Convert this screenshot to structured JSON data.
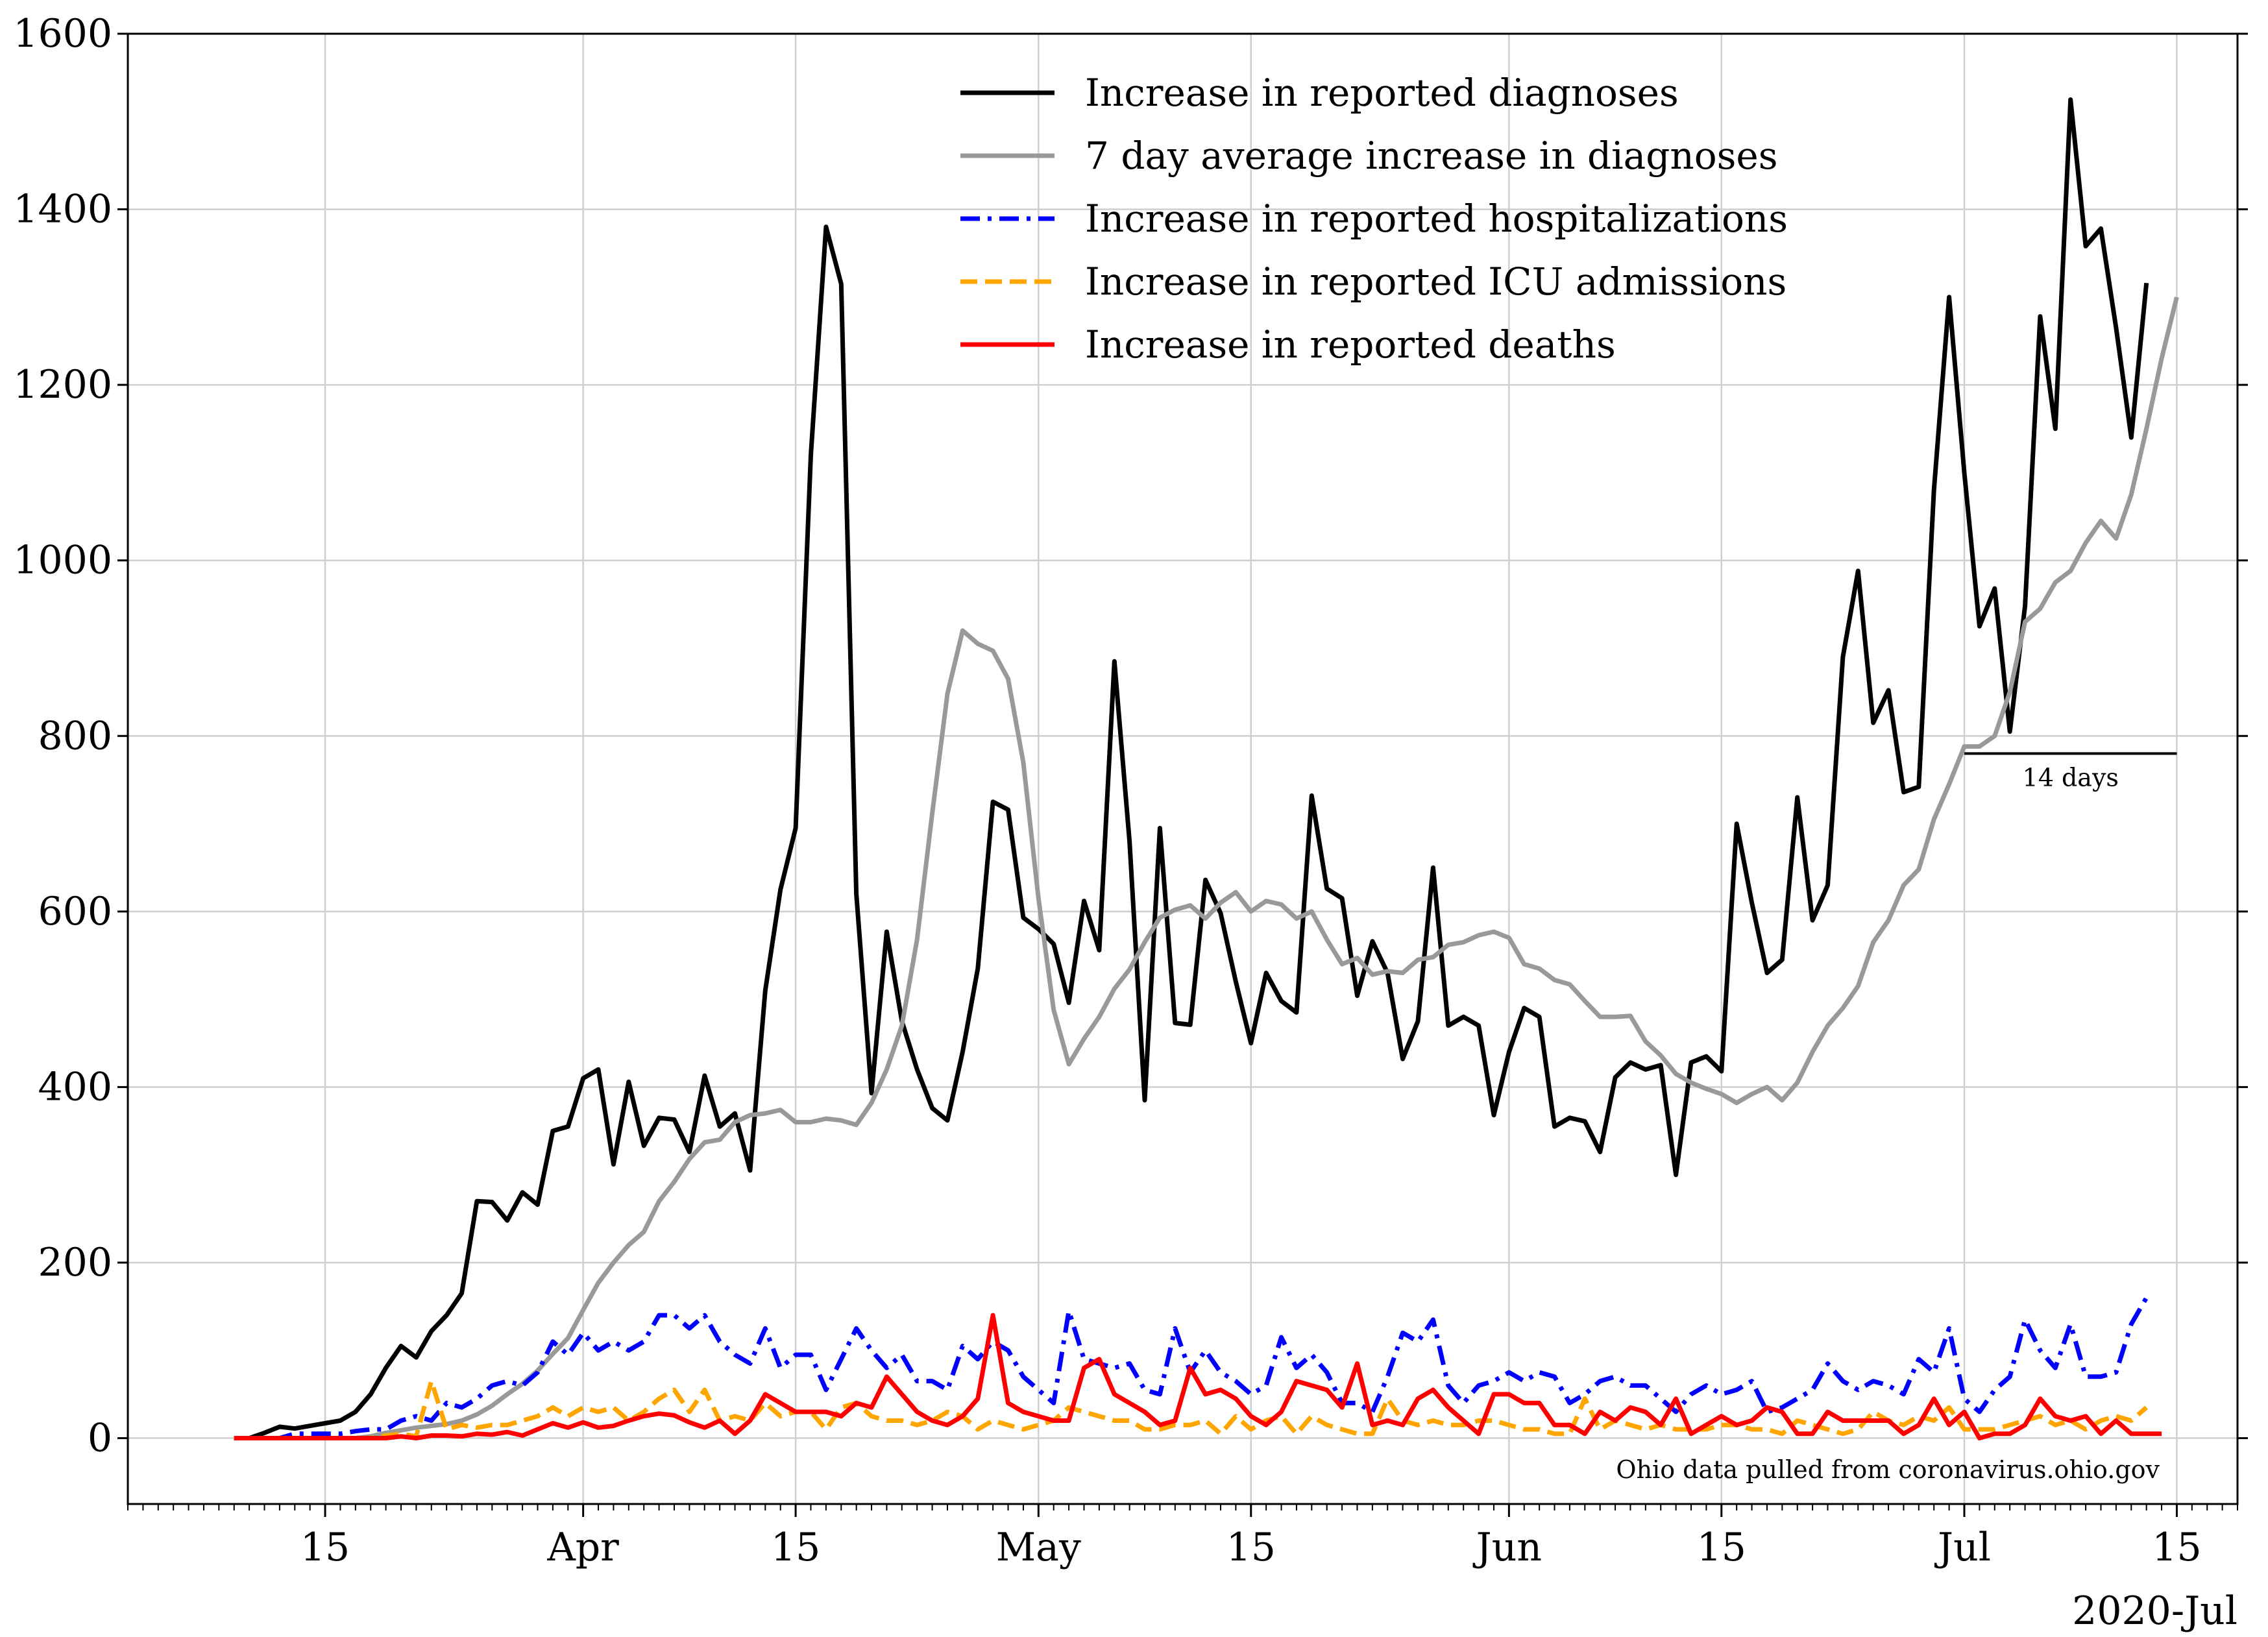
{
  "chart_data": {
    "type": "line",
    "x_axis": {
      "kind": "date",
      "range": [
        "2020-03-02",
        "2020-07-19"
      ],
      "major_ticks": [
        {
          "date": "2020-03-15",
          "label": "15"
        },
        {
          "date": "2020-04-01",
          "label": "Apr"
        },
        {
          "date": "2020-04-15",
          "label": "15"
        },
        {
          "date": "2020-05-01",
          "label": "May"
        },
        {
          "date": "2020-05-15",
          "label": "15"
        },
        {
          "date": "2020-06-01",
          "label": "Jun"
        },
        {
          "date": "2020-06-15",
          "label": "15"
        },
        {
          "date": "2020-07-01",
          "label": "Jul"
        },
        {
          "date": "2020-07-15",
          "label": "15"
        }
      ],
      "offset_label": "2020-Jul"
    },
    "y_axis": {
      "range": [
        -75,
        1600
      ],
      "ticks": [
        0,
        200,
        400,
        600,
        800,
        1000,
        1200,
        1400,
        1600
      ]
    },
    "grid": true,
    "legend_position": "top-center",
    "x_dates": [
      "2020-03-09",
      "2020-03-10",
      "2020-03-11",
      "2020-03-12",
      "2020-03-13",
      "2020-03-14",
      "2020-03-15",
      "2020-03-16",
      "2020-03-17",
      "2020-03-18",
      "2020-03-19",
      "2020-03-20",
      "2020-03-21",
      "2020-03-22",
      "2020-03-23",
      "2020-03-24",
      "2020-03-25",
      "2020-03-26",
      "2020-03-27",
      "2020-03-28",
      "2020-03-29",
      "2020-03-30",
      "2020-03-31",
      "2020-04-01",
      "2020-04-02",
      "2020-04-03",
      "2020-04-04",
      "2020-04-05",
      "2020-04-06",
      "2020-04-07",
      "2020-04-08",
      "2020-04-09",
      "2020-04-10",
      "2020-04-11",
      "2020-04-12",
      "2020-04-13",
      "2020-04-14",
      "2020-04-15",
      "2020-04-16",
      "2020-04-17",
      "2020-04-18",
      "2020-04-19",
      "2020-04-20",
      "2020-04-21",
      "2020-04-22",
      "2020-04-23",
      "2020-04-24",
      "2020-04-25",
      "2020-04-26",
      "2020-04-27",
      "2020-04-28",
      "2020-04-29",
      "2020-04-30",
      "2020-05-01",
      "2020-05-02",
      "2020-05-03",
      "2020-05-04",
      "2020-05-05",
      "2020-05-06",
      "2020-05-07",
      "2020-05-08",
      "2020-05-09",
      "2020-05-10",
      "2020-05-11",
      "2020-05-12",
      "2020-05-13",
      "2020-05-14",
      "2020-05-15",
      "2020-05-16",
      "2020-05-17",
      "2020-05-18",
      "2020-05-19",
      "2020-05-20",
      "2020-05-21",
      "2020-05-22",
      "2020-05-23",
      "2020-05-24",
      "2020-05-25",
      "2020-05-26",
      "2020-05-27",
      "2020-05-28",
      "2020-05-29",
      "2020-05-30",
      "2020-05-31",
      "2020-06-01",
      "2020-06-02",
      "2020-06-03",
      "2020-06-04",
      "2020-06-05",
      "2020-06-06",
      "2020-06-07",
      "2020-06-08",
      "2020-06-09",
      "2020-06-10",
      "2020-06-11",
      "2020-06-12",
      "2020-06-13",
      "2020-06-14",
      "2020-06-15",
      "2020-06-16",
      "2020-06-17",
      "2020-06-18",
      "2020-06-19",
      "2020-06-20",
      "2020-06-21",
      "2020-06-22",
      "2020-06-23",
      "2020-06-24",
      "2020-06-25",
      "2020-06-26",
      "2020-06-27",
      "2020-06-28",
      "2020-06-29",
      "2020-06-30",
      "2020-07-01",
      "2020-07-02",
      "2020-07-03",
      "2020-07-04",
      "2020-07-05",
      "2020-07-06",
      "2020-07-07",
      "2020-07-08",
      "2020-07-09",
      "2020-07-10",
      "2020-07-11",
      "2020-07-12",
      "2020-07-13",
      "2020-07-14",
      "2020-07-15",
      "2020-07-16"
    ],
    "series": [
      {
        "name": "Increase in reported diagnoses",
        "color": "#000000",
        "style": "solid",
        "values": [
          0,
          0,
          6,
          13,
          11,
          14,
          17,
          20,
          30,
          50,
          80,
          105,
          92,
          122,
          140,
          165,
          270,
          269,
          248,
          280,
          266,
          350,
          355,
          410,
          420,
          312,
          406,
          333,
          365,
          363,
          326,
          413,
          355,
          370,
          305,
          510,
          625,
          695,
          1120,
          1380,
          1315,
          620,
          393,
          577,
          475,
          420,
          376,
          362,
          440,
          535,
          725,
          716,
          593,
          580,
          563,
          496,
          612,
          556,
          885,
          680,
          385,
          695,
          473,
          471,
          636,
          598,
          520,
          450,
          530,
          498,
          485,
          732,
          626,
          615,
          504,
          566,
          530,
          432,
          475,
          650,
          470,
          480,
          470,
          368,
          440,
          490,
          480,
          355,
          365,
          361,
          326,
          411,
          428,
          420,
          425,
          300,
          428,
          435,
          418,
          700,
          610,
          530,
          545,
          730,
          590,
          630,
          890,
          988,
          815,
          852,
          736,
          742,
          1080,
          1300,
          1100,
          925,
          968,
          805,
          948,
          1278,
          1150,
          1525,
          1358,
          1378,
          1265,
          1140,
          1316
        ],
        "x_offset": 0
      },
      {
        "name": "7 day average increase in diagnoses",
        "color": "#999999",
        "style": "solid",
        "values": [
          0,
          0,
          2,
          6,
          9,
          12,
          14,
          16,
          20,
          27,
          37,
          50,
          62,
          77,
          96,
          114,
          146,
          177,
          200,
          220,
          235,
          270,
          292,
          318,
          337,
          340,
          360,
          368,
          370,
          374,
          360,
          360,
          364,
          362,
          357,
          382,
          420,
          470,
          568,
          712,
          848,
          920,
          905,
          897,
          865,
          770,
          615,
          488,
          426,
          455,
          480,
          512,
          534,
          565,
          593,
          602,
          607,
          592,
          610,
          622,
          600,
          612,
          608,
          592,
          600,
          568,
          540,
          547,
          528,
          532,
          530,
          545,
          548,
          562,
          565,
          573,
          577,
          570,
          540,
          535,
          522,
          517,
          498,
          480,
          480,
          481,
          452,
          436,
          415,
          405,
          398,
          392,
          382,
          392,
          400,
          385,
          405,
          440,
          470,
          490,
          515,
          565,
          590,
          630,
          648,
          705,
          745,
          788,
          788,
          800,
          850,
          930,
          945,
          975,
          988,
          1020,
          1045,
          1025,
          1075,
          1150,
          1230,
          1300
        ],
        "x_offset": 7
      },
      {
        "name": "Increase in reported hospitalizations",
        "color": "#0000ff",
        "style": "dashdot",
        "values": [
          0,
          0,
          0,
          0,
          5,
          5,
          5,
          5,
          8,
          10,
          10,
          20,
          25,
          20,
          40,
          35,
          45,
          60,
          65,
          60,
          75,
          110,
          95,
          120,
          100,
          110,
          100,
          110,
          140,
          140,
          125,
          140,
          110,
          95,
          85,
          125,
          80,
          95,
          95,
          55,
          90,
          125,
          100,
          80,
          95,
          65,
          65,
          55,
          105,
          90,
          110,
          100,
          70,
          55,
          40,
          145,
          90,
          85,
          80,
          85,
          55,
          50,
          125,
          75,
          100,
          75,
          65,
          50,
          60,
          115,
          80,
          95,
          75,
          40,
          40,
          30,
          70,
          120,
          110,
          135,
          60,
          40,
          60,
          65,
          75,
          65,
          75,
          70,
          40,
          50,
          65,
          70,
          60,
          60,
          45,
          30,
          50,
          60,
          50,
          55,
          65,
          30,
          35,
          45,
          55,
          85,
          65,
          55,
          65,
          60,
          50,
          90,
          75,
          125,
          45,
          30,
          55,
          70,
          135,
          100,
          80,
          130,
          70,
          70,
          75,
          130,
          160
        ],
        "x_offset": 0
      },
      {
        "name": "Increase in reported ICU admissions",
        "color": "#ffa500",
        "style": "dashed",
        "values": [
          0,
          0,
          0,
          0,
          0,
          0,
          0,
          0,
          0,
          0,
          3,
          5,
          2,
          65,
          10,
          15,
          12,
          15,
          15,
          20,
          25,
          35,
          25,
          35,
          30,
          35,
          20,
          30,
          45,
          55,
          30,
          55,
          20,
          25,
          20,
          40,
          25,
          30,
          30,
          10,
          35,
          40,
          25,
          20,
          20,
          15,
          20,
          30,
          25,
          10,
          20,
          15,
          10,
          15,
          20,
          35,
          30,
          25,
          20,
          20,
          10,
          10,
          15,
          15,
          20,
          5,
          25,
          10,
          20,
          25,
          5,
          25,
          15,
          10,
          5,
          5,
          45,
          20,
          15,
          20,
          15,
          15,
          20,
          20,
          15,
          10,
          10,
          5,
          5,
          45,
          10,
          20,
          15,
          10,
          15,
          10,
          10,
          10,
          15,
          15,
          10,
          10,
          5,
          20,
          15,
          10,
          5,
          10,
          30,
          20,
          15,
          25,
          20,
          35,
          10,
          10,
          10,
          15,
          20,
          25,
          15,
          20,
          10,
          20,
          25,
          20,
          35
        ],
        "x_offset": 0
      },
      {
        "name": "Increase in reported deaths",
        "color": "#ff0000",
        "style": "solid",
        "values": [
          0,
          0,
          0,
          0,
          0,
          0,
          0,
          0,
          0,
          0,
          0,
          2,
          0,
          3,
          3,
          2,
          5,
          4,
          7,
          3,
          10,
          17,
          12,
          18,
          12,
          14,
          20,
          25,
          28,
          26,
          18,
          12,
          20,
          5,
          20,
          50,
          40,
          30,
          30,
          30,
          25,
          40,
          35,
          70,
          50,
          30,
          20,
          15,
          25,
          45,
          140,
          40,
          30,
          25,
          20,
          20,
          80,
          90,
          50,
          40,
          30,
          15,
          20,
          80,
          50,
          55,
          45,
          25,
          15,
          30,
          65,
          60,
          55,
          35,
          85,
          15,
          20,
          15,
          45,
          55,
          35,
          20,
          5,
          50,
          50,
          40,
          40,
          15,
          15,
          5,
          30,
          20,
          35,
          30,
          15,
          45,
          5,
          15,
          25,
          15,
          20,
          35,
          30,
          5,
          5,
          30,
          20,
          20,
          20,
          20,
          5,
          15,
          45,
          15,
          30,
          0,
          5,
          5,
          15,
          45,
          25,
          20,
          25,
          5,
          20,
          5,
          5,
          5
        ],
        "x_offset": 0
      }
    ],
    "annotations": [
      {
        "text": "14 days",
        "from": "2020-07-01",
        "to": "2020-07-15",
        "y": 780
      },
      {
        "text": "Ohio data pulled from coronavirus.ohio.gov"
      }
    ]
  }
}
